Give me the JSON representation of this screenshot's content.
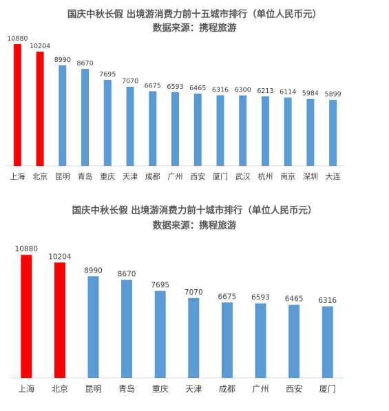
{
  "chart_data": [
    {
      "type": "bar",
      "title": "国庆中秋长假 出境游消费力前十五城市排行（单位人民币元）",
      "subtitle": "数据来源：携程旅游",
      "categories": [
        "上海",
        "北京",
        "昆明",
        "青岛",
        "重庆",
        "天津",
        "成都",
        "广州",
        "西安",
        "厦门",
        "武汉",
        "杭州",
        "南京",
        "深圳",
        "大连"
      ],
      "values": [
        10880,
        10204,
        8990,
        8670,
        7695,
        7070,
        6675,
        6593,
        6465,
        6316,
        6300,
        6213,
        6114,
        5984,
        5899
      ],
      "highlight_count": 2,
      "colors": {
        "highlight": "#ff0000",
        "normal": "#5b9bd5"
      },
      "ylim": [
        0,
        11500
      ],
      "xlabel": "",
      "ylabel": "",
      "grid": false,
      "legend": "none"
    },
    {
      "type": "bar",
      "title": "国庆中秋长假 出境游消费力前十城市排行（单位人民币元）",
      "subtitle": "数据来源：携程旅游",
      "categories": [
        "上海",
        "北京",
        "昆明",
        "青岛",
        "重庆",
        "天津",
        "成都",
        "广州",
        "西安",
        "厦门"
      ],
      "values": [
        10880,
        10204,
        8990,
        8670,
        7695,
        7070,
        6675,
        6593,
        6465,
        6316
      ],
      "highlight_count": 2,
      "colors": {
        "highlight": "#ff0000",
        "normal": "#5b9bd5"
      },
      "ylim": [
        0,
        11500
      ],
      "xlabel": "",
      "ylabel": "",
      "grid": false,
      "legend": "none"
    }
  ]
}
